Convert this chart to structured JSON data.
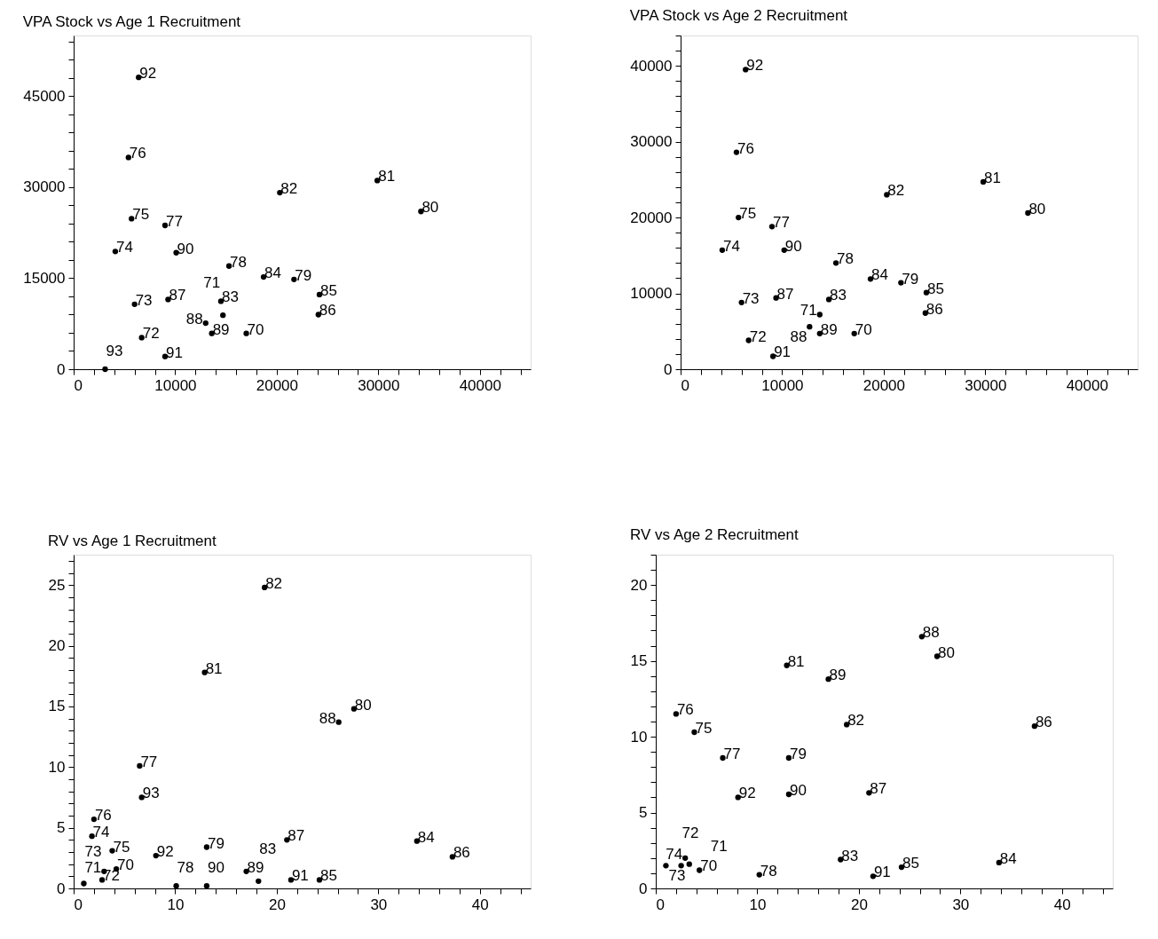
{
  "chart_data": [
    {
      "type": "scatter",
      "title": "VPA Stock vs Age 1 Recruitment",
      "marker": "circle",
      "grid": false,
      "x": [
        6400,
        5400,
        29900,
        20300,
        34200,
        5700,
        9000,
        4100,
        10100,
        15300,
        18700,
        21700,
        24200,
        6000,
        9300,
        14500,
        14700,
        13000,
        13600,
        17000,
        6700,
        9000,
        24100,
        3100
      ],
      "series": [
        {
          "color": "#000000",
          "values": [
            48100,
            34900,
            31100,
            29100,
            26000,
            24800,
            23700,
            19400,
            19200,
            17000,
            15200,
            14800,
            12300,
            10700,
            11500,
            11200,
            8900,
            7600,
            5900,
            5900,
            5200,
            2100,
            9000,
            0
          ]
        }
      ],
      "annotations": [
        {
          "text": "92",
          "x": 6400,
          "y": 48100
        },
        {
          "text": "76",
          "x": 5400,
          "y": 34900
        },
        {
          "text": "81",
          "x": 29900,
          "y": 31100
        },
        {
          "text": "82",
          "x": 20300,
          "y": 29100
        },
        {
          "text": "80",
          "x": 34200,
          "y": 26000
        },
        {
          "text": "75",
          "x": 5700,
          "y": 24800
        },
        {
          "text": "77",
          "x": 9000,
          "y": 23700
        },
        {
          "text": "74",
          "x": 4100,
          "y": 19400
        },
        {
          "text": "90",
          "x": 10100,
          "y": 19200
        },
        {
          "text": "78",
          "x": 15300,
          "y": 17000
        },
        {
          "text": "84",
          "x": 18700,
          "y": 15200
        },
        {
          "text": "79",
          "x": 21700,
          "y": 14800
        },
        {
          "text": "85",
          "x": 24200,
          "y": 12300
        },
        {
          "text": "73",
          "x": 6000,
          "y": 10700
        },
        {
          "text": "87",
          "x": 9300,
          "y": 11500
        },
        {
          "text": "83",
          "x": 14500,
          "y": 11200
        },
        {
          "text": "71",
          "x": 14700,
          "y": 8900
        },
        {
          "text": "88",
          "x": 13000,
          "y": 7600
        },
        {
          "text": "89",
          "x": 13600,
          "y": 5900
        },
        {
          "text": "70",
          "x": 17000,
          "y": 5900
        },
        {
          "text": "72",
          "x": 6700,
          "y": 5200
        },
        {
          "text": "91",
          "x": 9000,
          "y": 2100
        },
        {
          "text": "86",
          "x": 24100,
          "y": 9000
        },
        {
          "text": "93",
          "x": 3100,
          "y": 0
        }
      ],
      "xlim": [
        0,
        45000
      ],
      "ylim": [
        0,
        55000
      ],
      "xticks": [
        0,
        {
          "value": 2000,
          "label": null
        },
        {
          "value": 4000,
          "label": null
        },
        {
          "value": 6000,
          "label": null
        },
        {
          "value": 8000,
          "label": null
        },
        10000,
        {
          "value": 12000,
          "label": null
        },
        {
          "value": 14000,
          "label": null
        },
        {
          "value": 16000,
          "label": null
        },
        {
          "value": 18000,
          "label": null
        },
        20000,
        {
          "value": 22000,
          "label": null
        },
        {
          "value": 24000,
          "label": null
        },
        {
          "value": 26000,
          "label": null
        },
        {
          "value": 28000,
          "label": null
        },
        30000,
        {
          "value": 32000,
          "label": null
        },
        {
          "value": 34000,
          "label": null
        },
        {
          "value": 36000,
          "label": null
        },
        {
          "value": 38000,
          "label": null
        },
        40000,
        {
          "value": 42000,
          "label": null
        },
        {
          "value": 44000,
          "label": null
        }
      ],
      "yticks": [
        0,
        {
          "value": 3000,
          "label": null
        },
        {
          "value": 6000,
          "label": null
        },
        {
          "value": 9000,
          "label": null
        },
        {
          "value": 12000,
          "label": null
        },
        15000,
        {
          "value": 18000,
          "label": null
        },
        {
          "value": 21000,
          "label": null
        },
        {
          "value": 24000,
          "label": null
        },
        {
          "value": 27000,
          "label": null
        },
        30000,
        {
          "value": 33000,
          "label": null
        },
        {
          "value": 36000,
          "label": null
        },
        {
          "value": 39000,
          "label": null
        },
        {
          "value": 42000,
          "label": null
        },
        45000,
        {
          "value": 48000,
          "label": null
        },
        {
          "value": 51000,
          "label": null
        },
        {
          "value": 54000,
          "label": null
        }
      ]
    },
    {
      "type": "scatter",
      "title": "VPA Stock vs Age 2 Recruitment",
      "marker": "circle",
      "grid": false,
      "x": [
        6400,
        5500,
        29800,
        20300,
        34200,
        5700,
        9000,
        4100,
        10200,
        15300,
        18700,
        21700,
        24200,
        6000,
        9400,
        14600,
        13700,
        12700,
        13700,
        17100,
        6700,
        9100,
        24100
      ],
      "series": [
        {
          "color": "#000000",
          "values": [
            39500,
            28600,
            24700,
            23000,
            20600,
            20000,
            18800,
            15700,
            15700,
            14000,
            11900,
            11400,
            10100,
            8800,
            9400,
            9200,
            7200,
            5600,
            4700,
            4700,
            3800,
            1700,
            7400
          ]
        }
      ],
      "annotations": [
        {
          "text": "92",
          "x": 6400,
          "y": 39500
        },
        {
          "text": "76",
          "x": 5500,
          "y": 28600
        },
        {
          "text": "81",
          "x": 29800,
          "y": 24700
        },
        {
          "text": "82",
          "x": 20300,
          "y": 23000
        },
        {
          "text": "80",
          "x": 34200,
          "y": 20600
        },
        {
          "text": "75",
          "x": 5700,
          "y": 20000
        },
        {
          "text": "77",
          "x": 9000,
          "y": 18800
        },
        {
          "text": "74",
          "x": 4100,
          "y": 15700
        },
        {
          "text": "90",
          "x": 10200,
          "y": 15700
        },
        {
          "text": "78",
          "x": 15300,
          "y": 14000
        },
        {
          "text": "84",
          "x": 18700,
          "y": 11900
        },
        {
          "text": "79",
          "x": 21700,
          "y": 11400
        },
        {
          "text": "85",
          "x": 24200,
          "y": 10100
        },
        {
          "text": "73",
          "x": 6000,
          "y": 8800
        },
        {
          "text": "87",
          "x": 9400,
          "y": 9400
        },
        {
          "text": "83",
          "x": 14600,
          "y": 9200
        },
        {
          "text": "71",
          "x": 13700,
          "y": 7200
        },
        {
          "text": "88",
          "x": 12700,
          "y": 5600
        },
        {
          "text": "89",
          "x": 13700,
          "y": 4700
        },
        {
          "text": "70",
          "x": 17100,
          "y": 4700
        },
        {
          "text": "72",
          "x": 6700,
          "y": 3800
        },
        {
          "text": "91",
          "x": 9100,
          "y": 1700
        },
        {
          "text": "86",
          "x": 24100,
          "y": 7400
        }
      ],
      "xlim": [
        0,
        45000
      ],
      "ylim": [
        0,
        44000
      ],
      "xticks": [
        0,
        {
          "value": 2000,
          "label": null
        },
        {
          "value": 4000,
          "label": null
        },
        {
          "value": 6000,
          "label": null
        },
        {
          "value": 8000,
          "label": null
        },
        10000,
        {
          "value": 12000,
          "label": null
        },
        {
          "value": 14000,
          "label": null
        },
        {
          "value": 16000,
          "label": null
        },
        {
          "value": 18000,
          "label": null
        },
        20000,
        {
          "value": 22000,
          "label": null
        },
        {
          "value": 24000,
          "label": null
        },
        {
          "value": 26000,
          "label": null
        },
        {
          "value": 28000,
          "label": null
        },
        30000,
        {
          "value": 32000,
          "label": null
        },
        {
          "value": 34000,
          "label": null
        },
        {
          "value": 36000,
          "label": null
        },
        {
          "value": 38000,
          "label": null
        },
        40000,
        {
          "value": 42000,
          "label": null
        },
        {
          "value": 44000,
          "label": null
        }
      ],
      "yticks": [
        0,
        {
          "value": 2000,
          "label": null
        },
        {
          "value": 4000,
          "label": null
        },
        {
          "value": 6000,
          "label": null
        },
        {
          "value": 8000,
          "label": null
        },
        10000,
        {
          "value": 12000,
          "label": null
        },
        {
          "value": 14000,
          "label": null
        },
        {
          "value": 16000,
          "label": null
        },
        {
          "value": 18000,
          "label": null
        },
        20000,
        {
          "value": 22000,
          "label": null
        },
        {
          "value": 24000,
          "label": null
        },
        {
          "value": 26000,
          "label": null
        },
        {
          "value": 28000,
          "label": null
        },
        30000,
        {
          "value": 32000,
          "label": null
        },
        {
          "value": 34000,
          "label": null
        },
        {
          "value": 36000,
          "label": null
        },
        {
          "value": 38000,
          "label": null
        },
        40000,
        {
          "value": 42000,
          "label": null
        },
        {
          "value": 44000,
          "label": null
        }
      ]
    },
    {
      "type": "scatter",
      "title": "RV vs Age 1 Recruitment",
      "marker": "circle",
      "grid": false,
      "x": [
        18.8,
        12.9,
        27.6,
        26.1,
        6.5,
        6.7,
        2.0,
        1.8,
        3.8,
        8.1,
        13.1,
        21.0,
        33.8,
        37.3,
        17.0,
        18.2,
        21.4,
        24.2,
        10.1,
        13.1,
        4.2,
        1.0,
        2.8,
        3.0
      ],
      "series": [
        {
          "color": "#000000",
          "values": [
            24.8,
            17.8,
            14.8,
            13.7,
            10.1,
            7.5,
            5.7,
            4.3,
            3.1,
            2.7,
            3.4,
            4.0,
            3.9,
            2.6,
            1.4,
            0.6,
            0.7,
            0.7,
            0.2,
            0.2,
            1.6,
            0.4,
            0.7,
            1.4
          ]
        }
      ],
      "annotations": [
        {
          "text": "82",
          "x": 18.8,
          "y": 24.8
        },
        {
          "text": "81",
          "x": 12.9,
          "y": 17.8
        },
        {
          "text": "80",
          "x": 27.6,
          "y": 14.8
        },
        {
          "text": "88",
          "x": 26.1,
          "y": 13.7
        },
        {
          "text": "77",
          "x": 6.5,
          "y": 10.1
        },
        {
          "text": "93",
          "x": 6.7,
          "y": 7.5
        },
        {
          "text": "76",
          "x": 2.0,
          "y": 5.7
        },
        {
          "text": "74",
          "x": 1.8,
          "y": 4.3
        },
        {
          "text": "75",
          "x": 3.8,
          "y": 3.1
        },
        {
          "text": "92",
          "x": 8.1,
          "y": 2.7
        },
        {
          "text": "79",
          "x": 13.1,
          "y": 3.4
        },
        {
          "text": "87",
          "x": 21.0,
          "y": 4.0
        },
        {
          "text": "84",
          "x": 33.8,
          "y": 3.9
        },
        {
          "text": "86",
          "x": 37.3,
          "y": 2.6
        },
        {
          "text": "89",
          "x": 17.0,
          "y": 1.4
        },
        {
          "text": "83",
          "x": 18.2,
          "y": 0.6
        },
        {
          "text": "91",
          "x": 21.4,
          "y": 0.7
        },
        {
          "text": "85",
          "x": 24.2,
          "y": 0.7
        },
        {
          "text": "78",
          "x": 10.1,
          "y": 0.2
        },
        {
          "text": "90",
          "x": 13.1,
          "y": 0.2
        },
        {
          "text": "70",
          "x": 4.2,
          "y": 1.6
        },
        {
          "text": "73",
          "x": 1.0,
          "y": 0.4
        },
        {
          "text": "72",
          "x": 2.8,
          "y": 0.7
        },
        {
          "text": "71",
          "x": 3.0,
          "y": 1.4
        }
      ],
      "xlim": [
        0,
        45
      ],
      "ylim": [
        0,
        27.5
      ],
      "xticks": [
        0,
        {
          "value": 2,
          "label": null
        },
        {
          "value": 4,
          "label": null
        },
        {
          "value": 6,
          "label": null
        },
        {
          "value": 8,
          "label": null
        },
        10,
        {
          "value": 12,
          "label": null
        },
        {
          "value": 14,
          "label": null
        },
        {
          "value": 16,
          "label": null
        },
        {
          "value": 18,
          "label": null
        },
        20,
        {
          "value": 22,
          "label": null
        },
        {
          "value": 24,
          "label": null
        },
        {
          "value": 26,
          "label": null
        },
        {
          "value": 28,
          "label": null
        },
        30,
        {
          "value": 32,
          "label": null
        },
        {
          "value": 34,
          "label": null
        },
        {
          "value": 36,
          "label": null
        },
        {
          "value": 38,
          "label": null
        },
        40,
        {
          "value": 42,
          "label": null
        },
        {
          "value": 44,
          "label": null
        }
      ],
      "yticks": [
        0,
        {
          "value": 1,
          "label": null
        },
        {
          "value": 2,
          "label": null
        },
        {
          "value": 3,
          "label": null
        },
        {
          "value": 4,
          "label": null
        },
        5,
        {
          "value": 6,
          "label": null
        },
        {
          "value": 7,
          "label": null
        },
        {
          "value": 8,
          "label": null
        },
        {
          "value": 9,
          "label": null
        },
        10,
        {
          "value": 11,
          "label": null
        },
        {
          "value": 12,
          "label": null
        },
        {
          "value": 13,
          "label": null
        },
        {
          "value": 14,
          "label": null
        },
        15,
        {
          "value": 16,
          "label": null
        },
        {
          "value": 17,
          "label": null
        },
        {
          "value": 18,
          "label": null
        },
        {
          "value": 19,
          "label": null
        },
        20,
        {
          "value": 21,
          "label": null
        },
        {
          "value": 22,
          "label": null
        },
        {
          "value": 23,
          "label": null
        },
        {
          "value": 24,
          "label": null
        },
        25,
        {
          "value": 26,
          "label": null
        },
        {
          "value": 27,
          "label": null
        }
      ]
    },
    {
      "type": "scatter",
      "title": "RV vs Age 2 Recruitment",
      "marker": "circle",
      "grid": false,
      "x": [
        26.2,
        27.7,
        12.9,
        17.0,
        2.0,
        3.8,
        18.8,
        37.3,
        6.6,
        13.1,
        8.1,
        13.1,
        21.0,
        18.2,
        33.8,
        24.2,
        21.4,
        10.2,
        4.3,
        1.0,
        2.9,
        2.5,
        3.3
      ],
      "series": [
        {
          "color": "#000000",
          "values": [
            16.6,
            15.3,
            14.7,
            13.8,
            11.5,
            10.3,
            10.8,
            10.7,
            8.6,
            8.6,
            6.0,
            6.2,
            6.3,
            1.9,
            1.7,
            1.4,
            0.8,
            0.9,
            1.2,
            1.5,
            2.0,
            1.5,
            1.6
          ]
        }
      ],
      "annotations": [
        {
          "text": "88",
          "x": 26.2,
          "y": 16.6
        },
        {
          "text": "80",
          "x": 27.7,
          "y": 15.3
        },
        {
          "text": "81",
          "x": 12.9,
          "y": 14.7
        },
        {
          "text": "89",
          "x": 17.0,
          "y": 13.8
        },
        {
          "text": "76",
          "x": 2.0,
          "y": 11.5
        },
        {
          "text": "75",
          "x": 3.8,
          "y": 10.3
        },
        {
          "text": "82",
          "x": 18.8,
          "y": 10.8
        },
        {
          "text": "86",
          "x": 37.3,
          "y": 10.7
        },
        {
          "text": "77",
          "x": 6.6,
          "y": 8.6
        },
        {
          "text": "79",
          "x": 13.1,
          "y": 8.6
        },
        {
          "text": "92",
          "x": 8.1,
          "y": 6.0
        },
        {
          "text": "90",
          "x": 13.1,
          "y": 6.2
        },
        {
          "text": "87",
          "x": 21.0,
          "y": 6.3
        },
        {
          "text": "83",
          "x": 18.2,
          "y": 1.9
        },
        {
          "text": "84",
          "x": 33.8,
          "y": 1.7
        },
        {
          "text": "85",
          "x": 24.2,
          "y": 1.4
        },
        {
          "text": "91",
          "x": 21.4,
          "y": 0.8
        },
        {
          "text": "78",
          "x": 10.2,
          "y": 0.9
        },
        {
          "text": "70",
          "x": 4.3,
          "y": 1.2
        },
        {
          "text": "73",
          "x": 1.0,
          "y": 1.5
        },
        {
          "text": "74",
          "x": 2.9,
          "y": 2.0
        },
        {
          "text": "72",
          "x": 2.5,
          "y": 1.5
        },
        {
          "text": "71",
          "x": 3.3,
          "y": 1.6
        }
      ],
      "xlim": [
        0,
        45
      ],
      "ylim": [
        0,
        22
      ],
      "xticks": [
        0,
        {
          "value": 2,
          "label": null
        },
        {
          "value": 4,
          "label": null
        },
        {
          "value": 6,
          "label": null
        },
        {
          "value": 8,
          "label": null
        },
        10,
        {
          "value": 12,
          "label": null
        },
        {
          "value": 14,
          "label": null
        },
        {
          "value": 16,
          "label": null
        },
        {
          "value": 18,
          "label": null
        },
        20,
        {
          "value": 22,
          "label": null
        },
        {
          "value": 24,
          "label": null
        },
        {
          "value": 26,
          "label": null
        },
        {
          "value": 28,
          "label": null
        },
        30,
        {
          "value": 32,
          "label": null
        },
        {
          "value": 34,
          "label": null
        },
        {
          "value": 36,
          "label": null
        },
        {
          "value": 38,
          "label": null
        },
        40,
        {
          "value": 42,
          "label": null
        },
        {
          "value": 44,
          "label": null
        }
      ],
      "yticks": [
        0,
        {
          "value": 1,
          "label": null
        },
        {
          "value": 2,
          "label": null
        },
        {
          "value": 3,
          "label": null
        },
        {
          "value": 4,
          "label": null
        },
        5,
        {
          "value": 6,
          "label": null
        },
        {
          "value": 7,
          "label": null
        },
        {
          "value": 8,
          "label": null
        },
        {
          "value": 9,
          "label": null
        },
        10,
        {
          "value": 11,
          "label": null
        },
        {
          "value": 12,
          "label": null
        },
        {
          "value": 13,
          "label": null
        },
        {
          "value": 14,
          "label": null
        },
        15,
        {
          "value": 16,
          "label": null
        },
        {
          "value": 17,
          "label": null
        },
        {
          "value": 18,
          "label": null
        },
        {
          "value": 19,
          "label": null
        },
        20,
        {
          "value": 21,
          "label": null
        },
        {
          "value": 22,
          "label": null
        }
      ]
    }
  ]
}
